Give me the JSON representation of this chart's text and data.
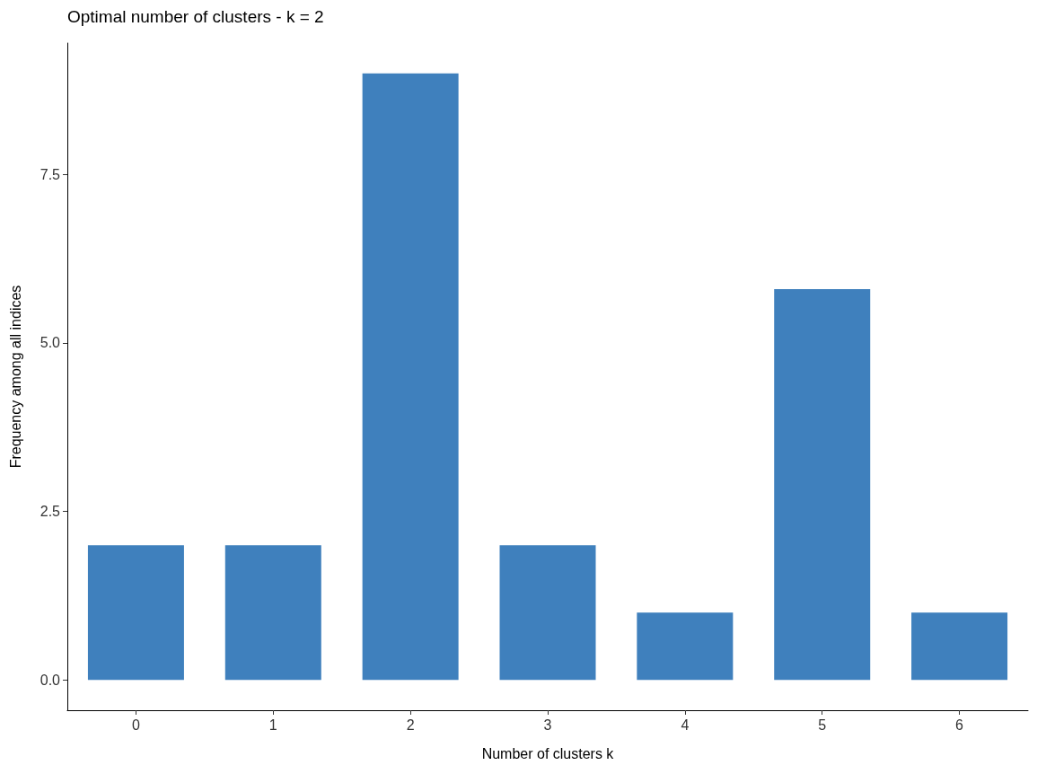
{
  "chart_data": {
    "type": "bar",
    "title": "Optimal number of clusters - k = 2",
    "xlabel": "Number of clusters k",
    "ylabel": "Frequency among all indices",
    "categories": [
      "0",
      "1",
      "2",
      "3",
      "4",
      "5",
      "6"
    ],
    "values": [
      2,
      2,
      9,
      2,
      1,
      5.8,
      1
    ],
    "color": "#3f80bd",
    "ylim": [
      -0.45,
      9.45
    ],
    "yticks": [
      {
        "value": 0,
        "label": "0.0"
      },
      2.5,
      {
        "value": 5,
        "label": "5.0"
      },
      7.5
    ],
    "grid": false
  }
}
